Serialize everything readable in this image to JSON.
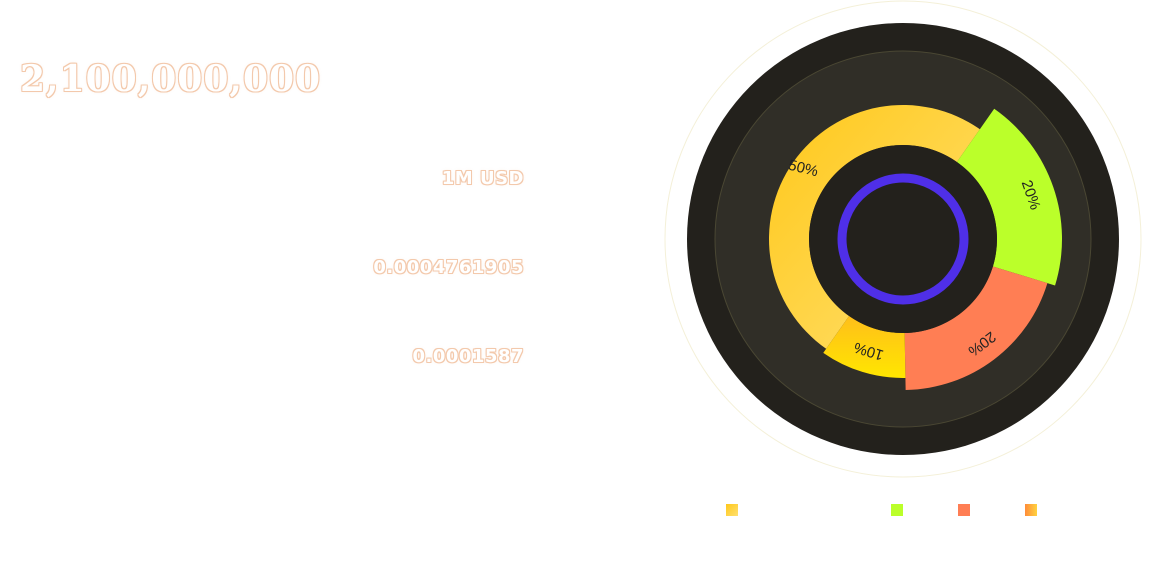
{
  "token": {
    "total_supply": "2,100,000,000"
  },
  "stats": {
    "stat_1": "1M USD",
    "stat_2": "0.0004761905",
    "stat_3": "0.0001587"
  },
  "chart_data": {
    "type": "pie",
    "style": "rose",
    "categories": [
      "",
      "",
      "",
      ""
    ],
    "series": [
      {
        "label": "50%",
        "values": [
          50,
          20,
          20,
          10
        ]
      }
    ],
    "slices": [
      {
        "label": "50%",
        "value": 50,
        "color": "#ffd23f"
      },
      {
        "label": "20%",
        "value": 20,
        "color": "#bbff2a"
      },
      {
        "label": "20%",
        "value": 20,
        "color": "#ff7e54"
      },
      {
        "label": "10%",
        "value": 10,
        "color": "#ffd700"
      }
    ],
    "legend": "bottom",
    "colors": {
      "outer_disc": "#23211c",
      "inner_disc": "#302e27",
      "center_ring": "#4f2fe8"
    }
  }
}
